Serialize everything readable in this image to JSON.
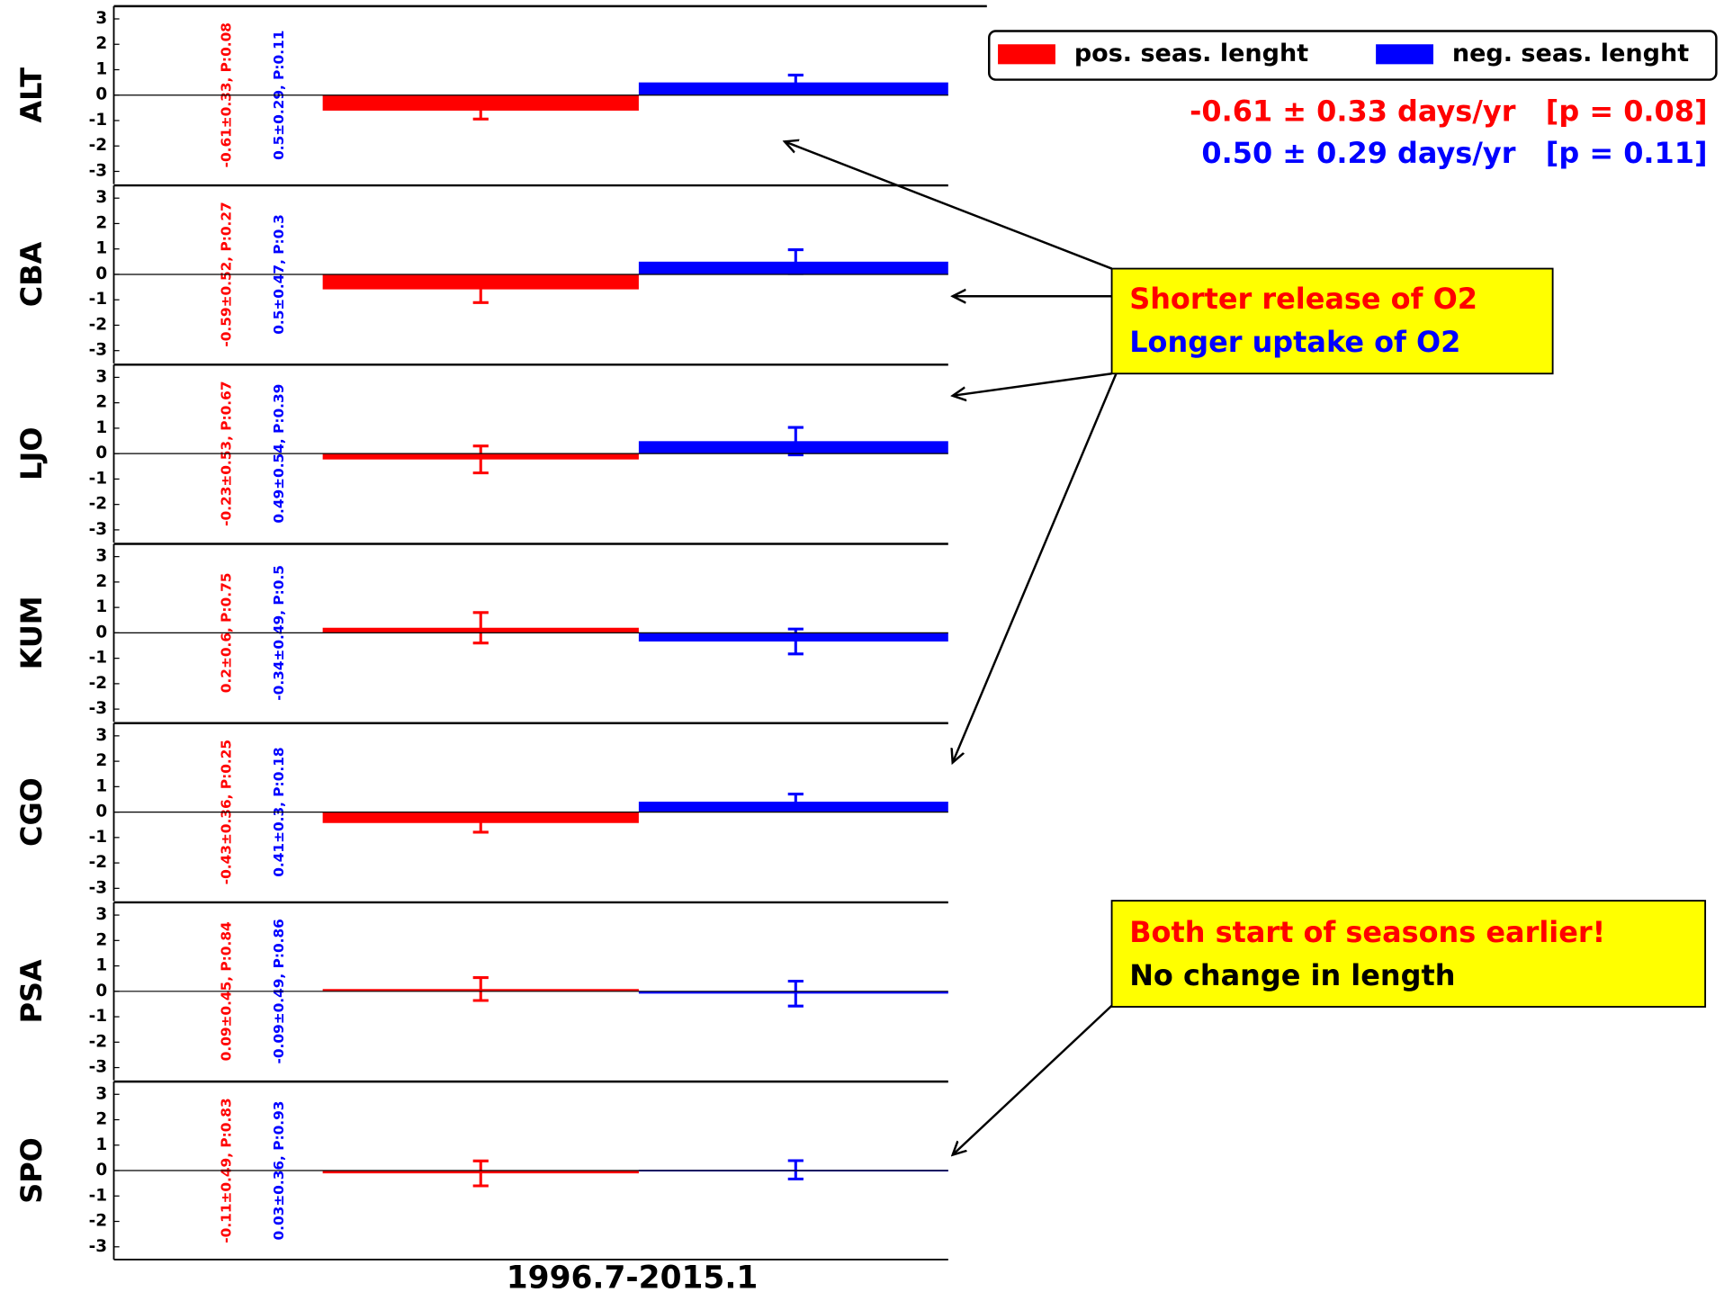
{
  "chart_data": [
    {
      "type": "bar",
      "ylabel": "ALT",
      "ylim": [
        -3.5,
        3.5
      ],
      "yticks": [
        -3,
        -2,
        -1,
        0,
        1,
        2,
        3
      ],
      "categories": [
        null
      ],
      "series": [
        {
          "color": "#ff0000",
          "values": [
            -0.61
          ],
          "errors": [
            0.33
          ],
          "value_labels": [
            "-0.61±0.33, P:0.08"
          ]
        },
        {
          "color": "#0000ff",
          "values": [
            0.5
          ],
          "errors": [
            0.29
          ],
          "value_labels": [
            "0.5±0.29, P:0.11"
          ]
        }
      ]
    },
    {
      "type": "bar",
      "ylabel": "CBA",
      "ylim": [
        -3.5,
        3.5
      ],
      "yticks": [
        -3,
        -2,
        -1,
        0,
        1,
        2,
        3
      ],
      "categories": [
        null
      ],
      "series": [
        {
          "color": "#ff0000",
          "values": [
            -0.59
          ],
          "errors": [
            0.52
          ],
          "value_labels": [
            "-0.59±0.52, P:0.27"
          ]
        },
        {
          "color": "#0000ff",
          "values": [
            0.5
          ],
          "errors": [
            0.47
          ],
          "value_labels": [
            "0.5±0.47, P:0.3"
          ]
        }
      ]
    },
    {
      "type": "bar",
      "ylabel": "LJO",
      "ylim": [
        -3.5,
        3.5
      ],
      "yticks": [
        -3,
        -2,
        -1,
        0,
        1,
        2,
        3
      ],
      "categories": [
        null
      ],
      "series": [
        {
          "color": "#ff0000",
          "values": [
            -0.23
          ],
          "errors": [
            0.53
          ],
          "value_labels": [
            "-0.23±0.53, P:0.67"
          ]
        },
        {
          "color": "#0000ff",
          "values": [
            0.49
          ],
          "errors": [
            0.54
          ],
          "value_labels": [
            "0.49±0.54, P:0.39"
          ]
        }
      ]
    },
    {
      "type": "bar",
      "ylabel": "KUM",
      "ylim": [
        -3.5,
        3.5
      ],
      "yticks": [
        -3,
        -2,
        -1,
        0,
        1,
        2,
        3
      ],
      "categories": [
        null
      ],
      "series": [
        {
          "color": "#ff0000",
          "values": [
            0.2
          ],
          "errors": [
            0.6
          ],
          "value_labels": [
            "0.2±0.6, P:0.75"
          ]
        },
        {
          "color": "#0000ff",
          "values": [
            -0.34
          ],
          "errors": [
            0.49
          ],
          "value_labels": [
            "-0.34±0.49, P:0.5"
          ]
        }
      ]
    },
    {
      "type": "bar",
      "ylabel": "CGO",
      "ylim": [
        -3.5,
        3.5
      ],
      "yticks": [
        -3,
        -2,
        -1,
        0,
        1,
        2,
        3
      ],
      "categories": [
        null
      ],
      "series": [
        {
          "color": "#ff0000",
          "values": [
            -0.43
          ],
          "errors": [
            0.36
          ],
          "value_labels": [
            "-0.43±0.36, P:0.25"
          ]
        },
        {
          "color": "#0000ff",
          "values": [
            0.41
          ],
          "errors": [
            0.3
          ],
          "value_labels": [
            "0.41±0.3, P:0.18"
          ]
        }
      ]
    },
    {
      "type": "bar",
      "ylabel": "PSA",
      "ylim": [
        -3.5,
        3.5
      ],
      "yticks": [
        -3,
        -2,
        -1,
        0,
        1,
        2,
        3
      ],
      "categories": [
        null
      ],
      "series": [
        {
          "color": "#ff0000",
          "values": [
            0.09
          ],
          "errors": [
            0.45
          ],
          "value_labels": [
            "0.09±0.45, P:0.84"
          ]
        },
        {
          "color": "#0000ff",
          "values": [
            -0.09
          ],
          "errors": [
            0.49
          ],
          "value_labels": [
            "-0.09±0.49, P:0.86"
          ]
        }
      ]
    },
    {
      "type": "bar",
      "ylabel": "SPO",
      "ylim": [
        -3.5,
        3.5
      ],
      "yticks": [
        -3,
        -2,
        -1,
        0,
        1,
        2,
        3
      ],
      "categories": [
        "1996.7-2015.1"
      ],
      "series": [
        {
          "color": "#ff0000",
          "values": [
            -0.11
          ],
          "errors": [
            0.49
          ],
          "value_labels": [
            "-0.11±0.49, P:0.83"
          ]
        },
        {
          "color": "#0000ff",
          "values": [
            0.03
          ],
          "errors": [
            0.36
          ],
          "value_labels": [
            "0.03±0.36, P:0.93"
          ]
        }
      ]
    }
  ],
  "legend": [
    {
      "name": "pos. seas. lenght",
      "color": "#ff0000"
    },
    {
      "name": "neg. seas. lenght",
      "color": "#0000ff"
    }
  ],
  "stats": [
    {
      "text": "-0.61 ± 0.33 days/yr   [p = 0.08]",
      "color": "#ff0000"
    },
    {
      "text": "0.50 ± 0.29 days/yr   [p = 0.11]",
      "color": "#0000ff"
    }
  ],
  "callouts": [
    {
      "lines": [
        {
          "text": "Shorter release of O2",
          "color": "#ff0000"
        },
        {
          "text": "Longer uptake of O2",
          "color": "#0000ff"
        }
      ]
    },
    {
      "lines": [
        {
          "text": "Both start of seasons earlier!",
          "color": "#ff0000"
        },
        {
          "text": "No change in length",
          "color": "#000000"
        }
      ]
    }
  ]
}
